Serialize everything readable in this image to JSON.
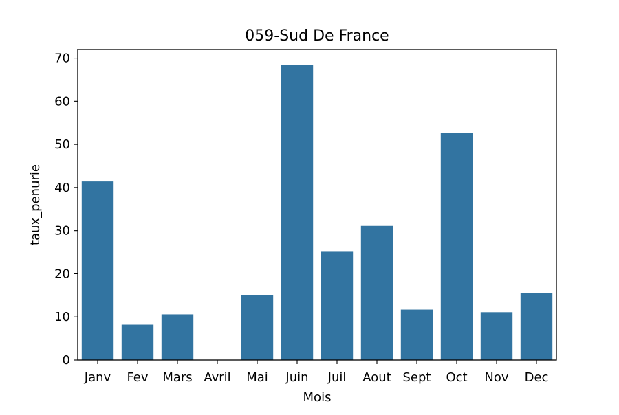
{
  "chart_data": {
    "type": "bar",
    "title": "059-Sud De France",
    "xlabel": "Mois",
    "ylabel": "taux_penurie",
    "categories": [
      "Janv",
      "Fev",
      "Mars",
      "Avril",
      "Mai",
      "Juin",
      "Juil",
      "Aout",
      "Sept",
      "Oct",
      "Nov",
      "Dec"
    ],
    "values": [
      41.4,
      8.2,
      10.6,
      0,
      15.1,
      68.4,
      25.1,
      31.1,
      11.7,
      52.7,
      11.1,
      15.5
    ],
    "ylim": [
      0,
      72
    ],
    "yticks": [
      0,
      10,
      20,
      30,
      40,
      50,
      60,
      70
    ],
    "bar_color": "#3274a1",
    "grid": false
  }
}
